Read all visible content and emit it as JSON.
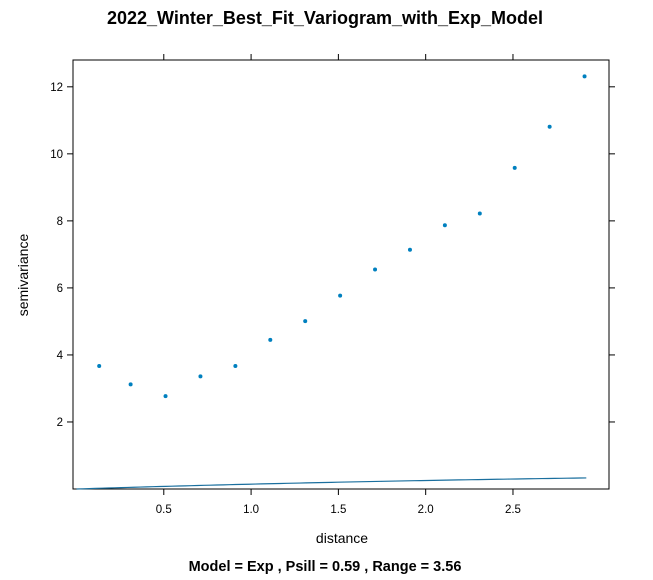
{
  "chart_data": {
    "type": "scatter",
    "title": "2022_Winter_Best_Fit_Variogram_with_Exp_Model",
    "subtitle": "Model = Exp , Psill = 0.59 , Range = 3.56",
    "xlabel": "distance",
    "ylabel": "semivariance",
    "xlim": [
      -0.02,
      3.05
    ],
    "ylim": [
      0,
      12.8
    ],
    "xticks": [
      0.5,
      1.0,
      1.5,
      2.0,
      2.5
    ],
    "xtick_labels": [
      "0.5",
      "1.0",
      "1.5",
      "2.0",
      "2.5"
    ],
    "yticks": [
      2,
      4,
      6,
      8,
      10,
      12
    ],
    "ytick_labels": [
      "2",
      "4",
      "6",
      "8",
      "10",
      "12"
    ],
    "grid": false,
    "point_color": "#0080bf",
    "line_color": "#1a6f9e",
    "points": {
      "x": [
        0.13,
        0.31,
        0.51,
        0.71,
        0.91,
        1.11,
        1.31,
        1.51,
        1.71,
        1.91,
        2.11,
        2.31,
        2.51,
        2.71,
        2.91
      ],
      "y": [
        3.67,
        3.12,
        2.77,
        3.36,
        3.67,
        4.45,
        5.01,
        5.77,
        6.55,
        7.14,
        7.87,
        8.22,
        9.58,
        10.81,
        12.31
      ]
    },
    "model": {
      "name": "Exp",
      "psill": 0.59,
      "range": 3.56,
      "x_start": 0.0,
      "x_end": 2.92
    }
  }
}
